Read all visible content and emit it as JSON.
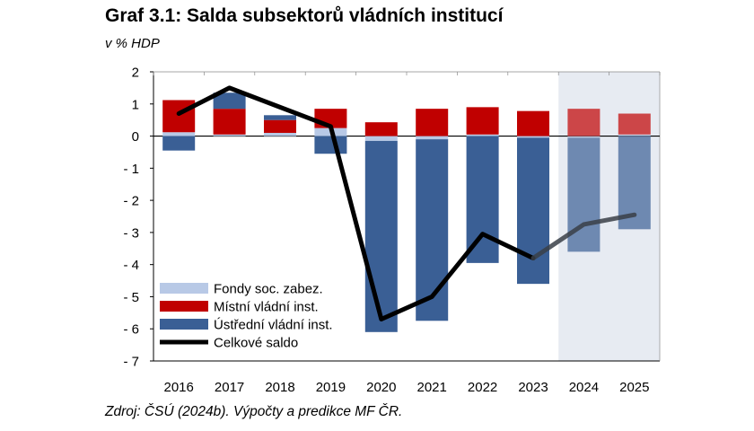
{
  "title": "Graf 3.1: Salda subsektorů vládních institucí",
  "subtitle": "v % HDP",
  "source": "Zdroj:  ČSÚ (2024b). Výpočty a predikce MF ČR.",
  "colors": {
    "fondy": "#b8c9e6",
    "mistni": "#c00000",
    "ustredni": "#3a5f95",
    "celkove": "#000000",
    "forecast_bg": "#e7ebf2"
  },
  "chart_data": {
    "type": "bar",
    "stacked": true,
    "categories": [
      "2016",
      "2017",
      "2018",
      "2019",
      "2020",
      "2021",
      "2022",
      "2023",
      "2024",
      "2025"
    ],
    "ylim": [
      -7,
      2
    ],
    "yticks": [
      2,
      1,
      0,
      -1,
      -2,
      -3,
      -4,
      -5,
      -6,
      -7
    ],
    "ytick_labels": [
      "2",
      "1",
      "0",
      "- 1",
      "- 2",
      "- 3",
      "- 4",
      "- 5",
      "- 6",
      "- 7"
    ],
    "forecast_categories": [
      "2024",
      "2025"
    ],
    "legend_position": "bottom-left",
    "series": [
      {
        "name": "Fondy soc. zabez.",
        "key": "fondy",
        "kind": "bar",
        "values": [
          0.12,
          0.05,
          0.1,
          0.25,
          -0.15,
          -0.1,
          0.05,
          -0.05,
          -0.05,
          0.05
        ]
      },
      {
        "name": "Místní vládní inst.",
        "key": "mistni",
        "kind": "bar",
        "values": [
          1.0,
          0.8,
          0.4,
          0.6,
          0.43,
          0.85,
          0.85,
          0.78,
          0.85,
          0.65
        ]
      },
      {
        "name": "Ústřední vládní inst.",
        "key": "ustredni",
        "kind": "bar",
        "values": [
          -0.45,
          0.5,
          0.15,
          -0.55,
          -5.95,
          -5.65,
          -3.95,
          -4.55,
          -3.55,
          -2.9
        ]
      },
      {
        "name": "Celkové saldo",
        "key": "celkove",
        "kind": "line",
        "values": [
          0.7,
          1.5,
          0.9,
          0.3,
          -5.7,
          -5.0,
          -3.05,
          -3.8,
          -2.75,
          -2.45
        ]
      }
    ]
  }
}
